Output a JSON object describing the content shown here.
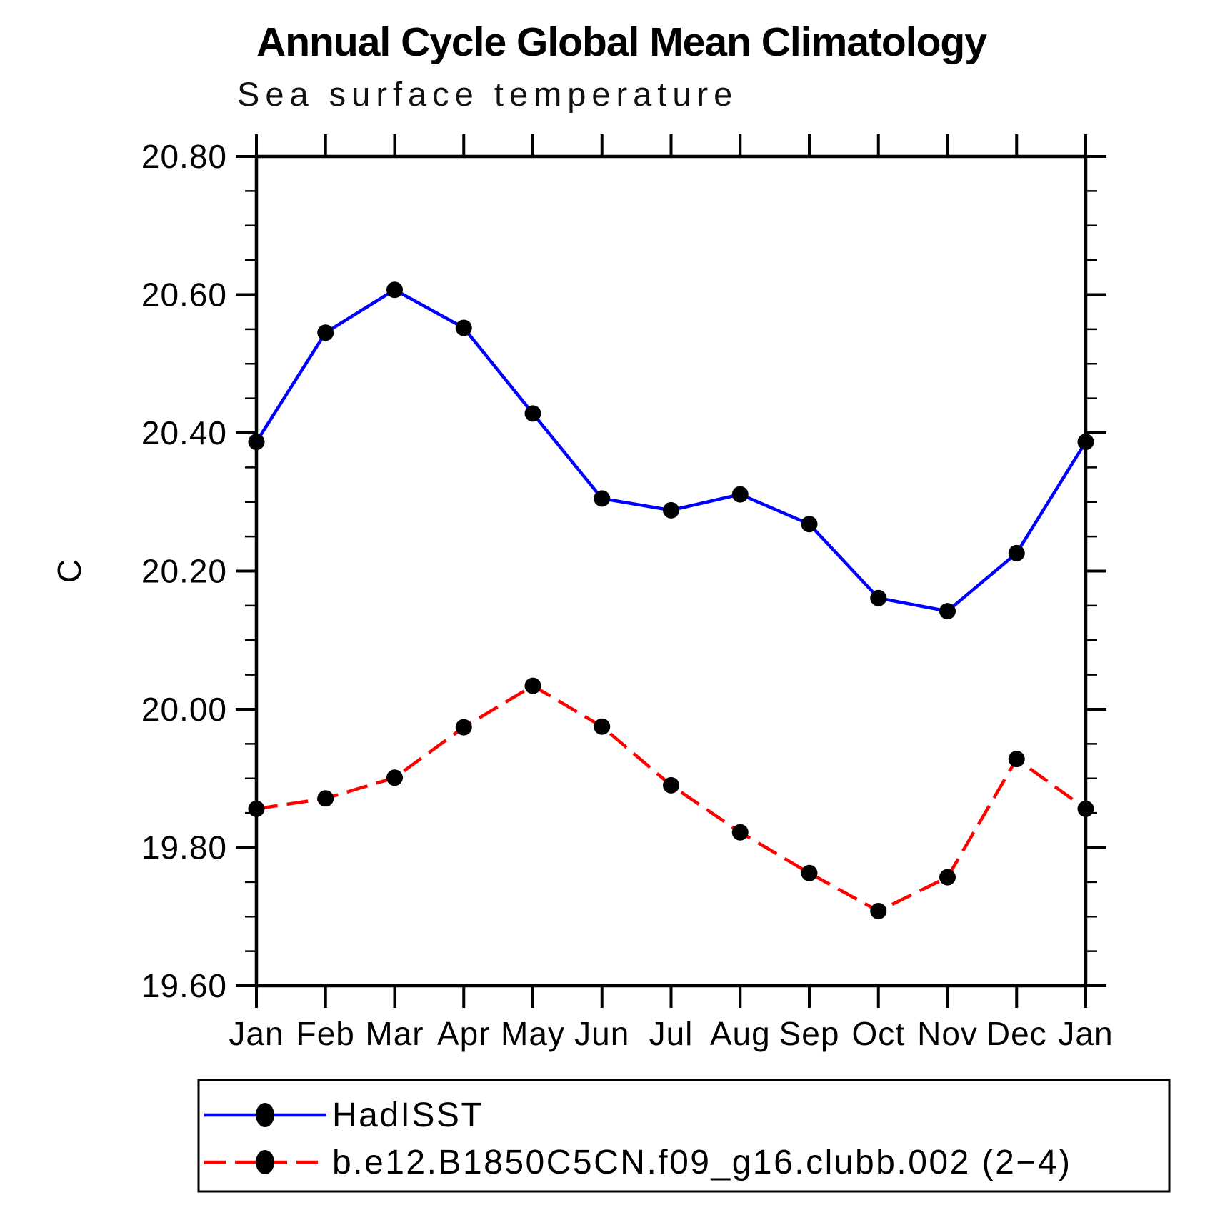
{
  "chart_data": {
    "type": "line",
    "title": "Annual Cycle Global Mean Climatology",
    "subtitle": "Sea surface temperature",
    "ylabel": "C",
    "xlabel": "",
    "categories": [
      "Jan",
      "Feb",
      "Mar",
      "Apr",
      "May",
      "Jun",
      "Jul",
      "Aug",
      "Sep",
      "Oct",
      "Nov",
      "Dec",
      "Jan"
    ],
    "ylim": [
      19.6,
      20.8
    ],
    "ytick_major": 0.2,
    "ytick_minor": 0.05,
    "ytick_labels": [
      "19.60",
      "19.80",
      "20.00",
      "20.20",
      "20.40",
      "20.60",
      "20.80"
    ],
    "grid": false,
    "legend_position": "bottom-left",
    "frame": "full-box-outward-ticks",
    "series": [
      {
        "name": "HadISST",
        "color": "#0000ff",
        "line_style": "solid",
        "marker": "circle",
        "marker_color": "#000000",
        "values": [
          20.387,
          20.545,
          20.607,
          20.552,
          20.428,
          20.305,
          20.288,
          20.311,
          20.268,
          20.161,
          20.142,
          20.226,
          20.387
        ]
      },
      {
        "name": "b.e12.B1850C5CN.f09_g16.clubb.002 (2−4)",
        "color": "#ff0000",
        "line_style": "dashed",
        "marker": "circle",
        "marker_color": "#000000",
        "values": [
          19.856,
          19.871,
          19.901,
          19.974,
          20.034,
          19.975,
          19.89,
          19.822,
          19.763,
          19.708,
          19.757,
          19.928,
          19.856
        ]
      }
    ]
  }
}
